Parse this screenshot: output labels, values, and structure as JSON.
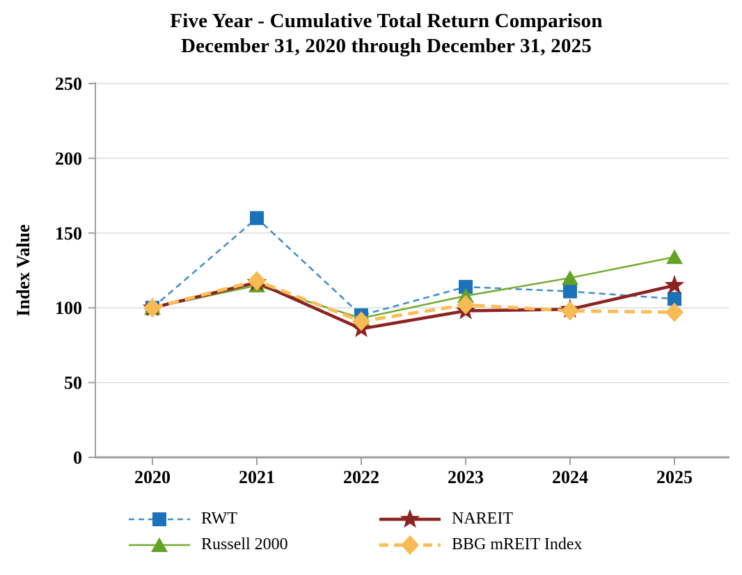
{
  "title": {
    "line1": "Five Year - Cumulative Total Return Comparison",
    "line2": "December 31, 2020 through December 31, 2025"
  },
  "chart_data": {
    "type": "line",
    "x": [
      "2020",
      "2021",
      "2022",
      "2023",
      "2024",
      "2025"
    ],
    "xlabel": "",
    "ylabel": "Index Value",
    "ylim": [
      0,
      250
    ],
    "yticks": [
      0,
      50,
      100,
      150,
      200,
      250
    ],
    "grid": "horizontal-light",
    "legend_position": "bottom",
    "series": [
      {
        "name": "RWT",
        "marker": "square",
        "line_style": "dashed",
        "color": "#1B72B8",
        "line_color": "#3E8CCB",
        "values": [
          100,
          160,
          95,
          114,
          111,
          106
        ]
      },
      {
        "name": "NAREIT",
        "marker": "star",
        "line_style": "solid",
        "color": "#8B2420",
        "line_color": "#8B2420",
        "values": [
          100,
          117,
          86,
          98,
          99,
          115
        ]
      },
      {
        "name": "Russell 2000",
        "marker": "triangle",
        "line_style": "solid",
        "color": "#63A224",
        "line_color": "#72AB30",
        "values": [
          100,
          115,
          93,
          108,
          120,
          134
        ]
      },
      {
        "name": "BBG mREIT Index",
        "marker": "diamond",
        "line_style": "long-dashed",
        "color": "#F6BB54",
        "line_color": "#F8BE5C",
        "values": [
          100,
          118,
          91,
          102,
          98,
          97
        ]
      }
    ],
    "draw_order": [
      0,
      2,
      1,
      3
    ]
  },
  "colors": {
    "background": "#FFFFFF",
    "gridline": "#DCDCDC",
    "axis": "#9E9E9E",
    "text": "#000000"
  }
}
